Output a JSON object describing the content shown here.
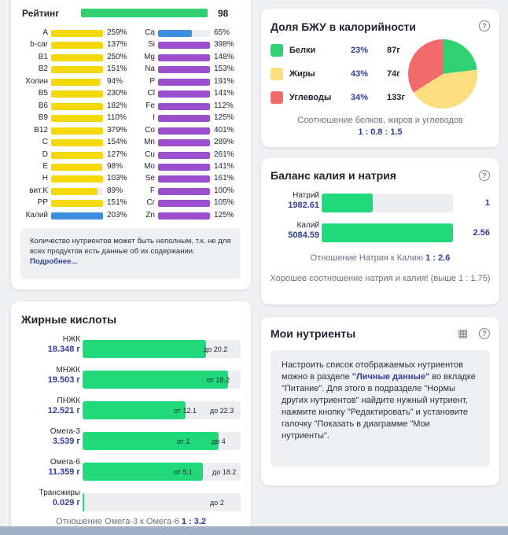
{
  "rating": {
    "label": "Рейтинг",
    "value": "98",
    "fraction": 0.98,
    "left_nutrients": [
      {
        "name": "A",
        "pct": "259%",
        "fill": 1.0,
        "color": "#f5d80a"
      },
      {
        "name": "b-car",
        "pct": "137%",
        "fill": 1.0,
        "color": "#f5d80a"
      },
      {
        "name": "B1",
        "pct": "250%",
        "fill": 1.0,
        "color": "#f5d80a"
      },
      {
        "name": "B2",
        "pct": "151%",
        "fill": 1.0,
        "color": "#f5d80a"
      },
      {
        "name": "Холин",
        "pct": "94%",
        "fill": 0.94,
        "color": "#f5d80a"
      },
      {
        "name": "B5",
        "pct": "230%",
        "fill": 1.0,
        "color": "#f5d80a"
      },
      {
        "name": "B6",
        "pct": "182%",
        "fill": 1.0,
        "color": "#f5d80a"
      },
      {
        "name": "B9",
        "pct": "110%",
        "fill": 1.0,
        "color": "#f5d80a"
      },
      {
        "name": "B12",
        "pct": "379%",
        "fill": 1.0,
        "color": "#f5d80a"
      },
      {
        "name": "C",
        "pct": "154%",
        "fill": 1.0,
        "color": "#f5d80a"
      },
      {
        "name": "D",
        "pct": "127%",
        "fill": 1.0,
        "color": "#f5d80a"
      },
      {
        "name": "E",
        "pct": "98%",
        "fill": 0.98,
        "color": "#f5d80a"
      },
      {
        "name": "H",
        "pct": "103%",
        "fill": 1.0,
        "color": "#f5d80a"
      },
      {
        "name": "вит.K",
        "pct": "89%",
        "fill": 0.89,
        "color": "#f5d80a"
      },
      {
        "name": "PP",
        "pct": "151%",
        "fill": 1.0,
        "color": "#f5d80a"
      },
      {
        "name": "Калий",
        "pct": "203%",
        "fill": 1.0,
        "color": "#3d8fe0"
      }
    ],
    "right_nutrients": [
      {
        "name": "Ca",
        "pct": "65%",
        "fill": 0.65,
        "color": "#3d8fe0"
      },
      {
        "name": "Si",
        "pct": "398%",
        "fill": 1.0,
        "color": "#9b4fcf"
      },
      {
        "name": "Mg",
        "pct": "148%",
        "fill": 1.0,
        "color": "#9b4fcf"
      },
      {
        "name": "Na",
        "pct": "153%",
        "fill": 1.0,
        "color": "#9b4fcf"
      },
      {
        "name": "P",
        "pct": "191%",
        "fill": 1.0,
        "color": "#9b4fcf"
      },
      {
        "name": "Cl",
        "pct": "141%",
        "fill": 1.0,
        "color": "#9b4fcf"
      },
      {
        "name": "Fe",
        "pct": "112%",
        "fill": 1.0,
        "color": "#9b4fcf"
      },
      {
        "name": "I",
        "pct": "125%",
        "fill": 1.0,
        "color": "#9b4fcf"
      },
      {
        "name": "Co",
        "pct": "401%",
        "fill": 1.0,
        "color": "#9b4fcf"
      },
      {
        "name": "Mn",
        "pct": "289%",
        "fill": 1.0,
        "color": "#9b4fcf"
      },
      {
        "name": "Cu",
        "pct": "261%",
        "fill": 1.0,
        "color": "#9b4fcf"
      },
      {
        "name": "Mo",
        "pct": "141%",
        "fill": 1.0,
        "color": "#9b4fcf"
      },
      {
        "name": "Se",
        "pct": "161%",
        "fill": 1.0,
        "color": "#9b4fcf"
      },
      {
        "name": "F",
        "pct": "100%",
        "fill": 1.0,
        "color": "#9b4fcf"
      },
      {
        "name": "Cr",
        "pct": "105%",
        "fill": 1.0,
        "color": "#9b4fcf"
      },
      {
        "name": "Zn",
        "pct": "125%",
        "fill": 1.0,
        "color": "#9b4fcf"
      }
    ],
    "note_text": "Количество нутриентов может быть неполным, т.к. не для всех продуктов есть данные об их содержании.",
    "note_link": "Подробнее..."
  },
  "fatty": {
    "title": "Жирные кислоты",
    "rows": [
      {
        "name": "НЖК",
        "amount": "18.348 г",
        "fill": 0.78,
        "mark_text": "до 20.2"
      },
      {
        "name": "МНЖК",
        "amount": "19.503 г",
        "fill": 0.92,
        "mark_text": "от 18.2"
      },
      {
        "name": "ПНЖК",
        "amount": "12.521 г",
        "fill": 0.65,
        "mark_text": "от 12.1",
        "mark2_text": "до 22.3"
      },
      {
        "name": "Омега-3",
        "amount": "3.539 г",
        "fill": 0.86,
        "mark_text": "от 1",
        "mark2_text": "до 4"
      },
      {
        "name": "Омега-6",
        "amount": "11.359 г",
        "fill": 0.76,
        "mark_text": "от 5.1",
        "mark2_text": "до 18.2"
      },
      {
        "name": "Трансжиры",
        "amount": "0.029 г",
        "fill": 0.01,
        "mark_text": "до 2"
      }
    ],
    "ratio_label": "Отношение Омега-3 к Омега-6",
    "ratio_value": "1 : 3.2"
  },
  "macro": {
    "title": "Доля БЖУ в калорийности",
    "rows": [
      {
        "name": "Белки",
        "pct": "23%",
        "grams": "87г",
        "value": 23,
        "color": "#2fd173"
      },
      {
        "name": "Жиры",
        "pct": "43%",
        "grams": "74г",
        "value": 43,
        "color": "#fbdf7e"
      },
      {
        "name": "Углеводы",
        "pct": "34%",
        "grams": "133г",
        "value": 34,
        "color": "#f26a6a"
      }
    ],
    "caption": "Соотношение белков, жиров и углеводов",
    "ratio": "1 : 0.8 : 1.5"
  },
  "kna": {
    "title": "Баланс калия и натрия",
    "rows": [
      {
        "name": "Натрий",
        "amount": "1982.61",
        "fill": 0.39,
        "ratio": "1"
      },
      {
        "name": "Калий",
        "amount": "5084.59",
        "fill": 1.0,
        "ratio": "2.56"
      }
    ],
    "ratio_label": "Отношение Натрия к Калию",
    "ratio_value": "1 : 2.6",
    "verdict": "Хорошее соотношение натрия и калия! (выше 1 : 1.75)"
  },
  "my_nutrients": {
    "title": "Мои нутриенты",
    "text_1": "Настроить список отображаемых нутриентов можно в разделе ",
    "link_1": "\"Личные данные\"",
    "text_2": " во вкладке \"Питание\". Для этого в подразделе \"Нормы других нутриентов\" найдите нужный нутриент, нажмите кнопку \"Редактировать\" и установите галочку \"Показать в диаграмме \"Мои нутриенты\"."
  },
  "icons": {
    "help": "?",
    "table": "▦"
  }
}
